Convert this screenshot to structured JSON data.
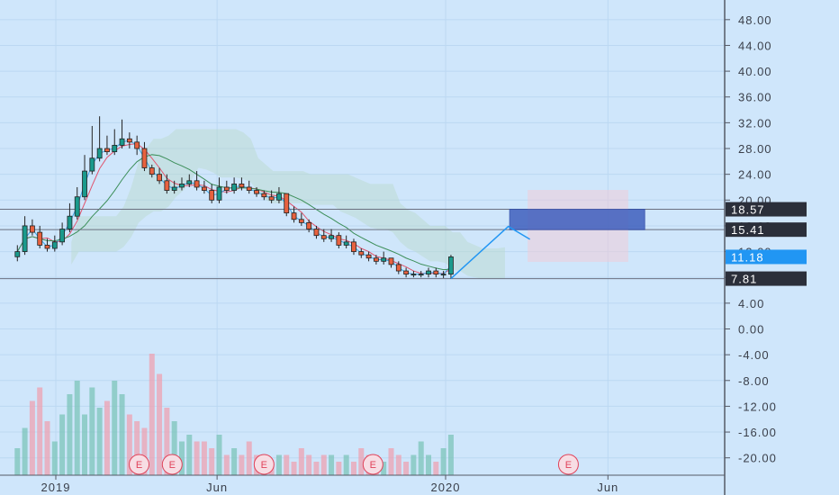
{
  "chart_data": {
    "type": "candlestick",
    "y_axis": {
      "ylim": [
        -23,
        51
      ],
      "ticks": [
        "48.00",
        "44.00",
        "40.00",
        "36.00",
        "32.00",
        "28.00",
        "24.00",
        "20.00",
        "16.00",
        "12.00",
        "8.00",
        "4.00",
        "0.00",
        "-4.00",
        "-8.00",
        "-12.00",
        "-16.00",
        "-20.00"
      ],
      "tick_values": [
        48,
        44,
        40,
        36,
        32,
        28,
        24,
        20,
        16,
        12,
        8,
        4,
        0,
        -4,
        -8,
        -12,
        -16,
        -20
      ],
      "grid": true
    },
    "x_axis": {
      "labels": [
        {
          "text": "2019",
          "x": "2019-01-01"
        },
        {
          "text": "Jun",
          "x": "2019-06-01"
        },
        {
          "text": "2020",
          "x": "2020-01-01"
        },
        {
          "text": "Jun",
          "x": "2020-06-01"
        }
      ],
      "grid": true
    },
    "price_tags": [
      {
        "label": "18.57",
        "value": 18.57,
        "color": "#2b2f3a"
      },
      {
        "label": "15.41",
        "value": 15.41,
        "color": "#2b2f3a"
      },
      {
        "label": "11.18",
        "value": 11.18,
        "color": "#2196f3"
      },
      {
        "label": "7.81",
        "value": 7.81,
        "color": "#2b2f3a"
      }
    ],
    "horizontal_levels": [
      18.57,
      15.41,
      7.81
    ],
    "candles": {
      "x": [
        "2018-11-26",
        "2018-12-03",
        "2018-12-10",
        "2018-12-17",
        "2018-12-24",
        "2018-12-31",
        "2019-01-07",
        "2019-01-14",
        "2019-01-21",
        "2019-01-28",
        "2019-02-04",
        "2019-02-11",
        "2019-02-18",
        "2019-02-25",
        "2019-03-04",
        "2019-03-11",
        "2019-03-18",
        "2019-03-25",
        "2019-04-01",
        "2019-04-08",
        "2019-04-15",
        "2019-04-22",
        "2019-04-29",
        "2019-05-06",
        "2019-05-13",
        "2019-05-20",
        "2019-05-27",
        "2019-06-03",
        "2019-06-10",
        "2019-06-17",
        "2019-06-24",
        "2019-07-01",
        "2019-07-08",
        "2019-07-15",
        "2019-07-22",
        "2019-07-29",
        "2019-08-05",
        "2019-08-12",
        "2019-08-19",
        "2019-08-26",
        "2019-09-02",
        "2019-09-09",
        "2019-09-16",
        "2019-09-23",
        "2019-09-30",
        "2019-10-07",
        "2019-10-14",
        "2019-10-21",
        "2019-10-28",
        "2019-11-04",
        "2019-11-11",
        "2019-11-18",
        "2019-11-25",
        "2019-12-02",
        "2019-12-09",
        "2019-12-16",
        "2019-12-23",
        "2019-12-30",
        "2020-01-06"
      ],
      "open": [
        11.2,
        12.0,
        16.0,
        15.0,
        13.0,
        12.5,
        13.5,
        15.5,
        17.5,
        20.5,
        24.5,
        26.5,
        28.0,
        27.5,
        28.5,
        29.5,
        29.0,
        28.0,
        25.0,
        24.0,
        23.0,
        21.5,
        22.0,
        22.5,
        23.0,
        22.0,
        21.5,
        20.0,
        22.0,
        21.5,
        22.5,
        22.0,
        21.5,
        21.0,
        20.5,
        20.0,
        21.0,
        18.0,
        17.0,
        16.5,
        15.5,
        14.5,
        14.0,
        14.5,
        13.0,
        13.5,
        12.0,
        11.5,
        11.0,
        10.5,
        11.0,
        10.0,
        9.0,
        8.5,
        8.5,
        8.5,
        9.0,
        8.5,
        8.5
      ],
      "close": [
        12.0,
        16.0,
        15.0,
        13.0,
        12.5,
        13.5,
        15.5,
        17.5,
        20.5,
        24.5,
        26.5,
        28.0,
        27.5,
        28.5,
        29.5,
        29.0,
        28.0,
        25.0,
        24.0,
        23.0,
        21.5,
        22.0,
        22.5,
        23.0,
        22.0,
        21.5,
        20.0,
        22.0,
        21.5,
        22.5,
        22.0,
        21.5,
        21.0,
        20.5,
        20.0,
        21.0,
        18.0,
        17.0,
        16.5,
        15.5,
        14.5,
        14.0,
        14.5,
        13.0,
        13.5,
        12.0,
        11.5,
        11.0,
        10.5,
        11.0,
        10.0,
        9.0,
        8.5,
        8.5,
        8.5,
        9.0,
        8.5,
        8.5,
        11.18
      ],
      "high": [
        13.0,
        17.5,
        17.0,
        16.0,
        14.0,
        14.5,
        16.5,
        19.5,
        22.0,
        27.0,
        31.5,
        33.0,
        30.0,
        31.0,
        32.5,
        30.5,
        30.0,
        29.0,
        25.5,
        25.0,
        24.0,
        23.0,
        23.5,
        24.0,
        24.5,
        23.0,
        22.5,
        23.5,
        23.0,
        23.5,
        23.5,
        23.0,
        22.0,
        21.5,
        21.5,
        22.0,
        21.0,
        19.0,
        18.0,
        17.0,
        16.0,
        15.5,
        15.5,
        15.0,
        14.5,
        14.0,
        12.5,
        12.0,
        11.5,
        12.0,
        11.0,
        10.5,
        9.5,
        9.0,
        9.0,
        9.5,
        9.5,
        9.0,
        11.5
      ],
      "low": [
        10.5,
        11.5,
        14.5,
        12.5,
        12.0,
        12.0,
        13.0,
        15.0,
        17.0,
        20.0,
        24.0,
        26.0,
        27.0,
        27.0,
        28.0,
        28.0,
        27.0,
        24.5,
        23.5,
        22.5,
        21.0,
        21.0,
        21.5,
        22.0,
        21.5,
        21.0,
        19.5,
        19.5,
        21.0,
        21.0,
        21.5,
        21.0,
        20.5,
        20.0,
        19.5,
        19.5,
        17.5,
        16.5,
        16.0,
        15.0,
        14.0,
        13.5,
        13.5,
        12.5,
        12.5,
        11.5,
        11.0,
        10.5,
        10.0,
        10.0,
        9.5,
        8.5,
        8.0,
        8.0,
        8.0,
        8.0,
        8.0,
        7.9,
        7.8
      ],
      "up_color": "#1a9a8c",
      "down_color": "#e8623f"
    },
    "volume": {
      "values": [
        4,
        7,
        11,
        13,
        8,
        5,
        9,
        12,
        14,
        9,
        13,
        10,
        11,
        14,
        12,
        9,
        8,
        7,
        18,
        15,
        10,
        8,
        5,
        6,
        5,
        5,
        4,
        6,
        3,
        4,
        3,
        5,
        3,
        3,
        2,
        3,
        3,
        2,
        4,
        3,
        2,
        3,
        3,
        2,
        3,
        2,
        4,
        3,
        3,
        2,
        4,
        3,
        2,
        3,
        5,
        3,
        2,
        4,
        6
      ],
      "up_color": "#7cc4b9",
      "down_color": "#eea2b2"
    },
    "projection": {
      "arrow_from": {
        "x": "2020-01-06",
        "y": 7.81
      },
      "arrow_to": {
        "x": "2020-03-25",
        "y": 15.41
      },
      "zone": {
        "x_start": "2020-03-01",
        "x_end": "2020-06-20",
        "y_low": 15.41,
        "y_high": 18.57,
        "color": "#3f5fbd"
      }
    },
    "earnings_markers": [
      {
        "label": "E",
        "x": "2019-03-20"
      },
      {
        "label": "E",
        "x": "2019-04-20"
      },
      {
        "label": "E",
        "x": "2019-07-15"
      },
      {
        "label": "E",
        "x": "2019-10-25"
      },
      {
        "label": "E",
        "x": "2020-04-25"
      }
    ]
  }
}
